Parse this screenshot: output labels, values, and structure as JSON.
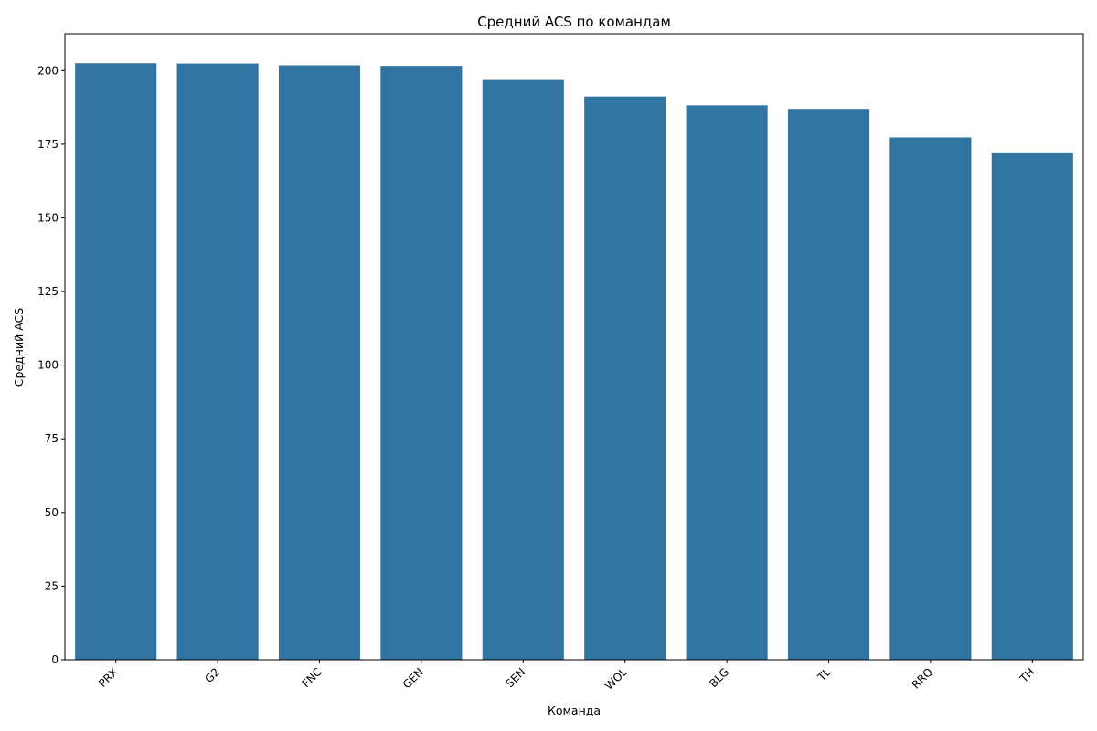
{
  "chart_data": {
    "type": "bar",
    "title": "Средний ACS по командам",
    "xlabel": "Команда",
    "ylabel": "Средний ACS",
    "categories": [
      "PRX",
      "G2",
      "FNC",
      "GEN",
      "SEN",
      "WOL",
      "BLG",
      "TL",
      "RRQ",
      "TH"
    ],
    "values": [
      202.5,
      202.4,
      201.8,
      201.6,
      196.8,
      191.2,
      188.2,
      187.0,
      177.3,
      172.2
    ],
    "ylim": [
      0,
      212.5
    ],
    "yticks": [
      0,
      25,
      50,
      75,
      100,
      125,
      150,
      175,
      200
    ],
    "grid": false,
    "legend": "none",
    "bar_color": "#3274a1",
    "xtick_rotation": -45
  }
}
